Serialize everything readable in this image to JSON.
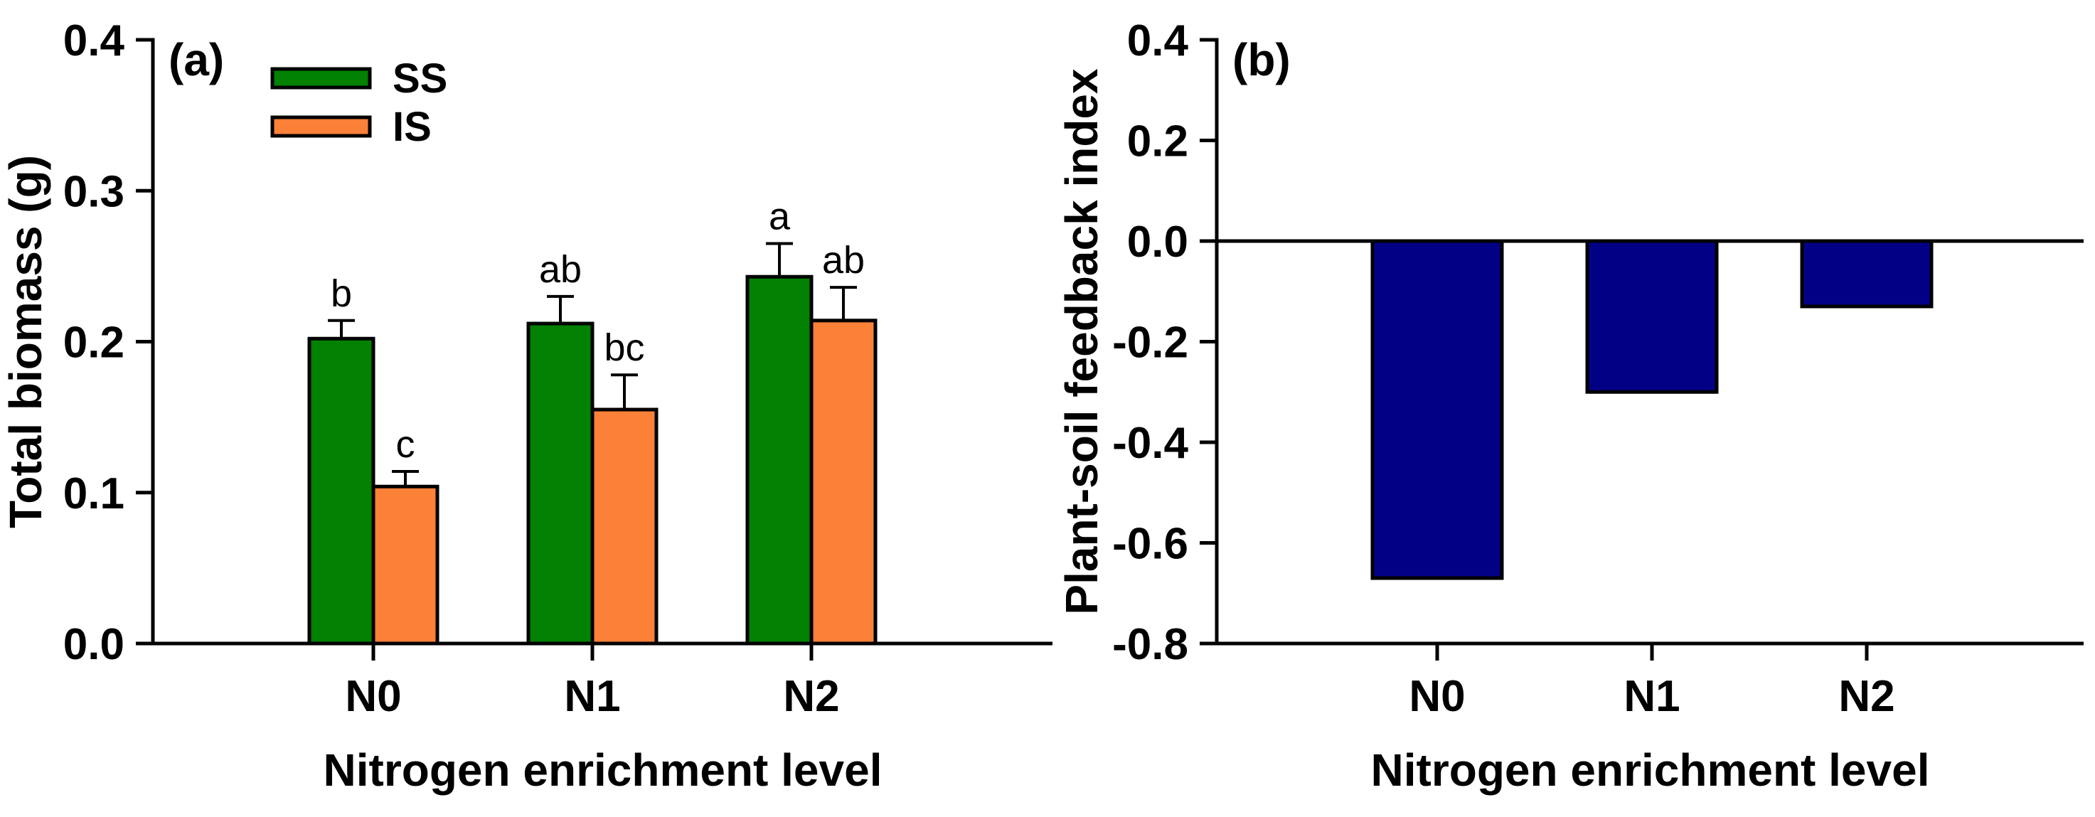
{
  "figure": {
    "background": "#ffffff",
    "axis_color": "#000000",
    "error_bar_color": "#000000"
  },
  "chart_data": [
    {
      "panel_label": "(a)",
      "type": "bar",
      "categories": [
        "N0",
        "N1",
        "N2"
      ],
      "series": [
        {
          "name": "SS",
          "color": "#028102",
          "values": [
            0.202,
            0.212,
            0.243
          ],
          "errors": [
            0.012,
            0.018,
            0.022
          ],
          "sig_letters": [
            "b",
            "ab",
            "a"
          ]
        },
        {
          "name": "IS",
          "color": "#FC8138",
          "values": [
            0.104,
            0.155,
            0.214
          ],
          "errors": [
            0.01,
            0.023,
            0.022
          ],
          "sig_letters": [
            "c",
            "bc",
            "ab"
          ]
        }
      ],
      "title": "",
      "xlabel": "Nitrogen enrichment level",
      "ylabel": "Total biomass (g)",
      "ylim": [
        0.0,
        0.4
      ],
      "yticks": [
        0.0,
        0.1,
        0.2,
        0.3,
        0.4
      ],
      "ytick_decimals": 1,
      "grid": false,
      "legend_position": "top-left-inside",
      "legend_entries": [
        "SS",
        "IS"
      ]
    },
    {
      "panel_label": "(b)",
      "type": "bar",
      "categories": [
        "N0",
        "N1",
        "N2"
      ],
      "series": [
        {
          "name": "Plant-soil feedback index",
          "color": "#020186",
          "values": [
            -0.67,
            -0.3,
            -0.13
          ],
          "errors": [
            0,
            0,
            0
          ],
          "sig_letters": [
            "",
            "",
            ""
          ]
        }
      ],
      "title": "",
      "xlabel": "Nitrogen enrichment level",
      "ylabel": "Plant-soil feedback index",
      "ylim": [
        -0.8,
        0.4
      ],
      "yticks": [
        0.4,
        0.2,
        0.0,
        -0.2,
        -0.4,
        -0.6,
        -0.8
      ],
      "ytick_decimals": 1,
      "grid": false,
      "zero_line": true,
      "legend_entries": []
    }
  ]
}
